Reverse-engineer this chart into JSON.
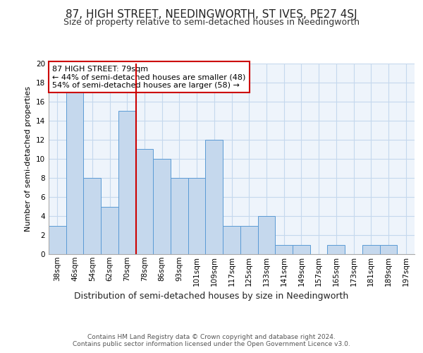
{
  "title": "87, HIGH STREET, NEEDINGWORTH, ST IVES, PE27 4SJ",
  "subtitle": "Size of property relative to semi-detached houses in Needingworth",
  "xlabel": "Distribution of semi-detached houses by size in Needingworth",
  "ylabel": "Number of semi-detached properties",
  "categories": [
    "38sqm",
    "46sqm",
    "54sqm",
    "62sqm",
    "70sqm",
    "78sqm",
    "86sqm",
    "93sqm",
    "101sqm",
    "109sqm",
    "117sqm",
    "125sqm",
    "133sqm",
    "141sqm",
    "149sqm",
    "157sqm",
    "165sqm",
    "173sqm",
    "181sqm",
    "189sqm",
    "197sqm"
  ],
  "values": [
    3,
    17,
    8,
    5,
    15,
    11,
    10,
    8,
    8,
    12,
    3,
    3,
    4,
    1,
    1,
    0,
    1,
    0,
    1,
    1,
    0
  ],
  "bar_color": "#c5d8ed",
  "bar_edge_color": "#5b9bd5",
  "red_line_x": 4.5,
  "annotation_text": "87 HIGH STREET: 79sqm\n← 44% of semi-detached houses are smaller (48)\n54% of semi-detached houses are larger (58) →",
  "annotation_box_color": "#ffffff",
  "annotation_box_edge_color": "#cc0000",
  "ylim": [
    0,
    20
  ],
  "yticks": [
    0,
    2,
    4,
    6,
    8,
    10,
    12,
    14,
    16,
    18,
    20
  ],
  "grid_color": "#c5d8ed",
  "background_color": "#eef4fb",
  "footer_text": "Contains HM Land Registry data © Crown copyright and database right 2024.\nContains public sector information licensed under the Open Government Licence v3.0.",
  "title_fontsize": 11,
  "subtitle_fontsize": 9,
  "xlabel_fontsize": 9,
  "ylabel_fontsize": 8,
  "tick_fontsize": 7.5,
  "annotation_fontsize": 8,
  "footer_fontsize": 6.5
}
